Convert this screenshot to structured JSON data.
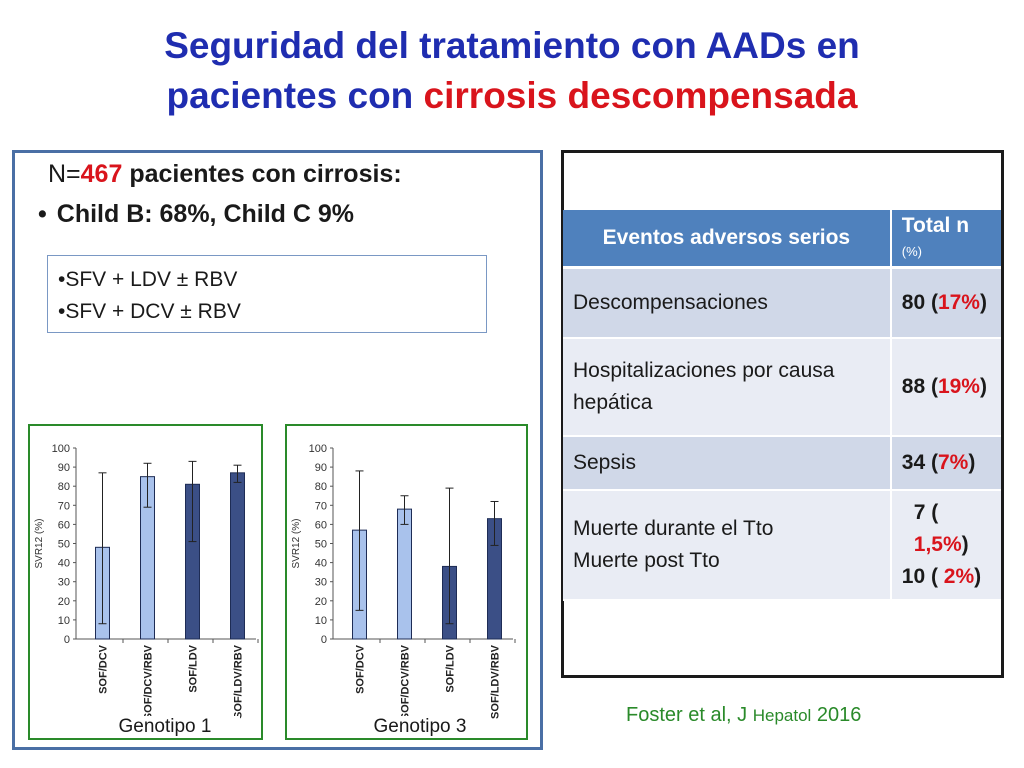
{
  "title": {
    "line1": "Seguridad del tratamiento con AADs en",
    "line2_start": "pacientes con ",
    "line2_red": "cirrosis descompensada"
  },
  "summary": {
    "n_prefix": "N=",
    "n_value": "467",
    "n_suffix": " pacientes con cirrosis:",
    "bullet": "•",
    "child": "Child B: 68%, Child C 9%"
  },
  "regimens": [
    "•SFV + LDV ± RBV",
    "•SFV + DCV ± RBV"
  ],
  "table": {
    "header_col1": "Eventos adversos serios",
    "header_col2": "Total n ",
    "header_col2_small": "(%)",
    "rows": [
      {
        "event": "Descompensaciones",
        "n": "80 (",
        "pct": "17%",
        "close": ")"
      },
      {
        "event": "Hospitalizaciones  por causa hepática",
        "n": "88 (",
        "pct": "19%",
        "close": ")"
      },
      {
        "event": "Sepsis",
        "n": "34 (",
        "pct": "7%",
        "close": ")"
      },
      {
        "event": "Muerte durante el Tto",
        "event2": "Muerte  post  Tto",
        "n": "7 ( ",
        "pct": "1,5%",
        "close": ")",
        "n2": "10 (  ",
        "pct2": "2%",
        "close2": ")"
      }
    ]
  },
  "citation": {
    "main": "Foster et al, J ",
    "small": "Hepatol",
    "year": " 2016"
  },
  "chart_data": [
    {
      "type": "bar",
      "ylabel": "SVR12 (%)",
      "ylim": [
        0,
        100
      ],
      "yticks": [
        0,
        10,
        20,
        30,
        40,
        50,
        60,
        70,
        80,
        90,
        100
      ],
      "categories": [
        "SOF/DCV",
        "SOF/DCV/RBV",
        "SOF/LDV",
        "SOF/LDV/RBV"
      ],
      "values": [
        48,
        85,
        81,
        87
      ],
      "error_low": [
        8,
        69,
        51,
        82
      ],
      "error_high": [
        87,
        92,
        93,
        91
      ],
      "colors": [
        "#a9c2ec",
        "#a9c2ec",
        "#3b4f86",
        "#3b4f86"
      ],
      "label": "Genotipo 1"
    },
    {
      "type": "bar",
      "ylabel": "SVR12 (%)",
      "ylim": [
        0,
        100
      ],
      "yticks": [
        0,
        10,
        20,
        30,
        40,
        50,
        60,
        70,
        80,
        90,
        100
      ],
      "categories": [
        "SOF/DCV",
        "SOF/DCV/RBV",
        "SOF/LDV",
        "SOF/LDV/RBV"
      ],
      "values": [
        57,
        68,
        38,
        63
      ],
      "error_low": [
        15,
        60,
        8,
        49
      ],
      "error_high": [
        88,
        75,
        79,
        72
      ],
      "colors": [
        "#a9c2ec",
        "#a9c2ec",
        "#3b4f86",
        "#3b4f86"
      ],
      "label": "Genotipo 3"
    }
  ]
}
